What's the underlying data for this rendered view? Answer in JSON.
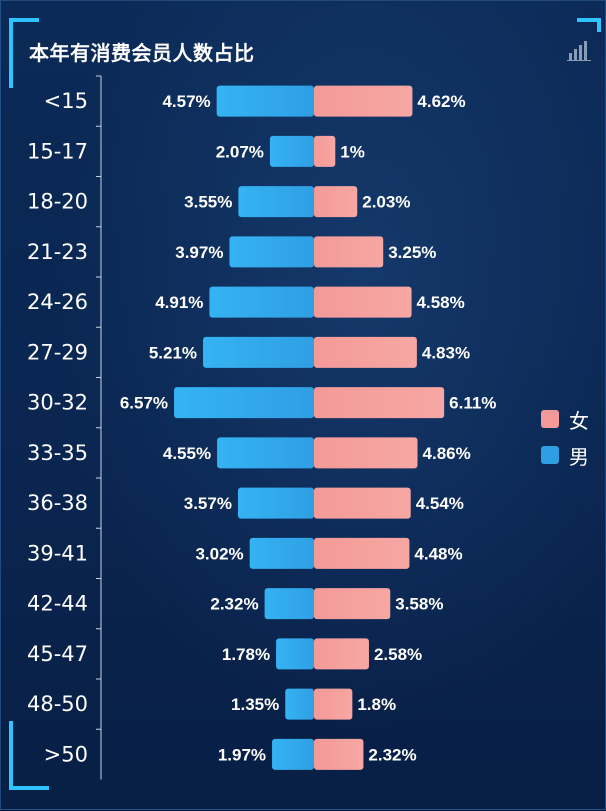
{
  "title": "本年有消费会员人数占比",
  "colors": {
    "male": "#2f9fe3",
    "male_light": "#35b3f2",
    "female": "#f39a98",
    "female_light": "#f7a7a3",
    "accent": "#2fc4ff"
  },
  "icons": {
    "toolbox": "bar-chart-icon"
  },
  "legend": {
    "female": "女",
    "male": "男"
  },
  "chart_data": {
    "type": "bar",
    "orientation": "horizontal-butterfly",
    "title": "本年有消费会员人数占比",
    "categories": [
      "<15",
      "15-17",
      "18-20",
      "21-23",
      "24-26",
      "27-29",
      "30-32",
      "33-35",
      "36-38",
      "39-41",
      "42-44",
      "45-47",
      "48-50",
      ">50"
    ],
    "series": [
      {
        "name": "男",
        "side": "left",
        "values": [
          4.57,
          2.07,
          3.55,
          3.97,
          4.91,
          5.21,
          6.57,
          4.55,
          3.57,
          3.02,
          2.32,
          1.78,
          1.35,
          1.97
        ],
        "labels": [
          "4.57%",
          "2.07%",
          "3.55%",
          "3.97%",
          "4.91%",
          "5.21%",
          "6.57%",
          "4.55%",
          "3.57%",
          "3.02%",
          "2.32%",
          "1.78%",
          "1.35%",
          "1.97%"
        ]
      },
      {
        "name": "女",
        "side": "right",
        "values": [
          4.62,
          1,
          2.03,
          3.25,
          4.58,
          4.83,
          6.11,
          4.86,
          4.54,
          4.48,
          3.58,
          2.58,
          1.8,
          2.32
        ],
        "labels": [
          "4.62%",
          "1%",
          "2.03%",
          "3.25%",
          "4.58%",
          "4.83%",
          "6.11%",
          "4.86%",
          "4.54%",
          "4.48%",
          "3.58%",
          "2.58%",
          "1.8%",
          "2.32%"
        ]
      }
    ],
    "value_unit": "%",
    "legend_position": "right",
    "grid": false
  }
}
